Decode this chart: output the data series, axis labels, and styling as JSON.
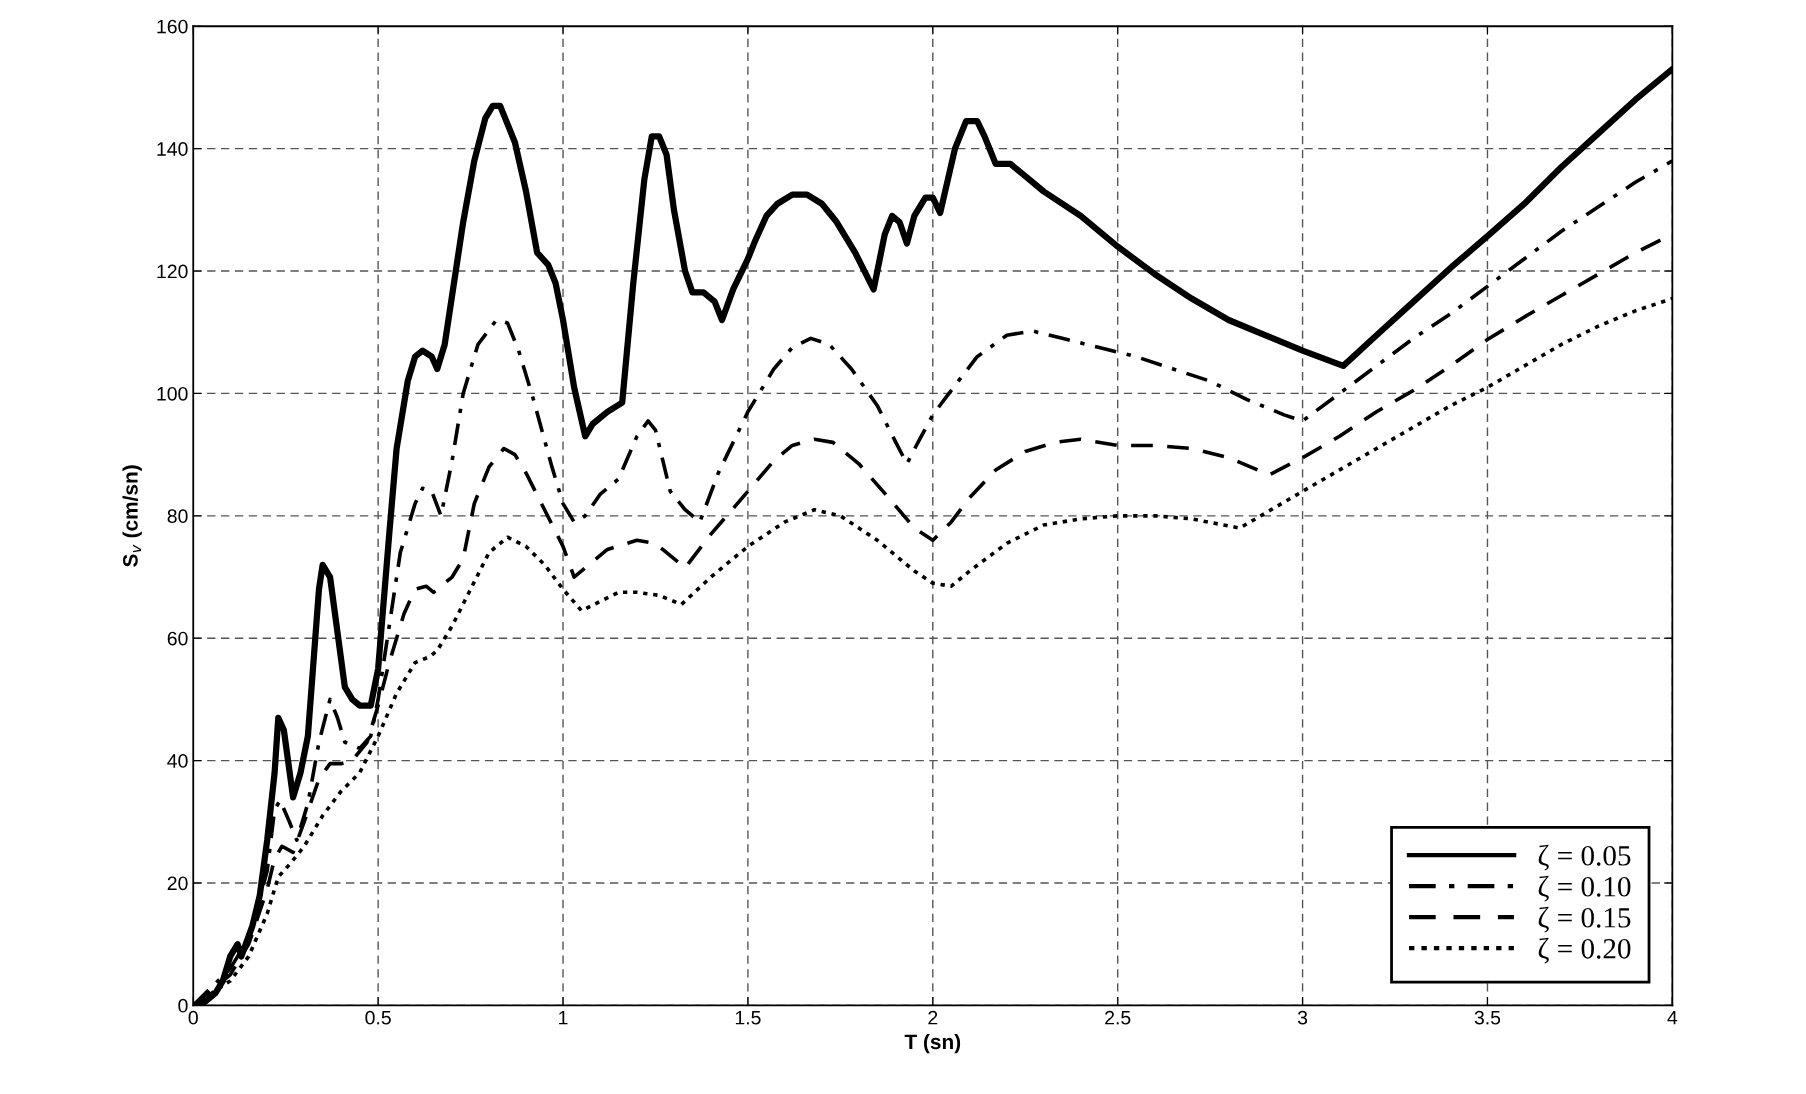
{
  "chart_data": {
    "type": "line",
    "xlabel": "T (sn)",
    "ylabel": "S$_{v}$ (cm/sn)",
    "xlim": [
      0,
      4
    ],
    "ylim": [
      0,
      160
    ],
    "xticks": [
      0,
      0.5,
      1,
      1.5,
      2,
      2.5,
      3,
      3.5,
      4
    ],
    "yticks": [
      0,
      20,
      40,
      60,
      80,
      100,
      120,
      140,
      160
    ],
    "grid": true,
    "legend": "bottom right",
    "marker": "none",
    "series": [
      {
        "name": "ζ = 0.05",
        "color": "#000000",
        "line_style": "solid",
        "x": [
          0,
          0.03,
          0.06,
          0.08,
          0.1,
          0.12,
          0.13,
          0.16,
          0.18,
          0.2,
          0.22,
          0.23,
          0.245,
          0.27,
          0.29,
          0.31,
          0.34,
          0.35,
          0.37,
          0.39,
          0.41,
          0.43,
          0.45,
          0.48,
          0.5,
          0.53,
          0.55,
          0.58,
          0.6,
          0.62,
          0.645,
          0.66,
          0.68,
          0.7,
          0.73,
          0.76,
          0.79,
          0.81,
          0.83,
          0.85,
          0.87,
          0.9,
          0.93,
          0.96,
          0.98,
          1.0,
          1.03,
          1.06,
          1.08,
          1.12,
          1.16,
          1.19,
          1.22,
          1.24,
          1.26,
          1.28,
          1.3,
          1.33,
          1.35,
          1.38,
          1.41,
          1.43,
          1.46,
          1.5,
          1.52,
          1.55,
          1.58,
          1.62,
          1.66,
          1.7,
          1.74,
          1.79,
          1.84,
          1.87,
          1.89,
          1.91,
          1.93,
          1.95,
          1.98,
          2.0,
          2.02,
          2.06,
          2.09,
          2.12,
          2.14,
          2.17,
          2.21,
          2.25,
          2.3,
          2.4,
          2.5,
          2.6,
          2.7,
          2.8,
          2.9,
          3.0,
          3.11,
          3.2,
          3.3,
          3.4,
          3.5,
          3.6,
          3.7,
          3.8,
          3.9,
          4.0
        ],
        "values": [
          0,
          0.5,
          2,
          4,
          8,
          10,
          8,
          13,
          18,
          27,
          38,
          47,
          45,
          34,
          38,
          44,
          68,
          72,
          70,
          61,
          52,
          50,
          49,
          49,
          55,
          77,
          91,
          102,
          106,
          107,
          106,
          104,
          108,
          116,
          128,
          138,
          145,
          147,
          147,
          144,
          141,
          133,
          123,
          121,
          118,
          112,
          101,
          93,
          95,
          97,
          98.5,
          118,
          135,
          142,
          142,
          139,
          130,
          120,
          116.5,
          116.5,
          115,
          112,
          117,
          122,
          125,
          129,
          131,
          132.5,
          132.5,
          131,
          128,
          123,
          117,
          126,
          129,
          128,
          124.5,
          129,
          132,
          132,
          129.5,
          140,
          144.5,
          144.5,
          142,
          137.5,
          137.5,
          135.5,
          133,
          129,
          124,
          119.5,
          115.5,
          112,
          109.5,
          107,
          104.5,
          109.5,
          115,
          120.5,
          125.7,
          131,
          137,
          142.5,
          148,
          153
        ]
      },
      {
        "name": "ζ = 0.10",
        "color": "#000000",
        "line_style": "dashdot",
        "x": [
          0,
          0.1,
          0.15,
          0.2,
          0.22,
          0.235,
          0.26,
          0.28,
          0.31,
          0.34,
          0.37,
          0.39,
          0.41,
          0.45,
          0.48,
          0.5,
          0.53,
          0.56,
          0.6,
          0.62,
          0.645,
          0.67,
          0.7,
          0.73,
          0.77,
          0.82,
          0.85,
          0.88,
          0.92,
          0.97,
          1.0,
          1.03,
          1.06,
          1.1,
          1.15,
          1.2,
          1.23,
          1.25,
          1.29,
          1.33,
          1.37,
          1.42,
          1.5,
          1.57,
          1.62,
          1.67,
          1.72,
          1.78,
          1.85,
          1.9,
          1.93,
          1.96,
          2.0,
          2.05,
          2.12,
          2.2,
          2.27,
          2.35,
          2.45,
          2.55,
          2.65,
          2.75,
          2.85,
          2.95,
          3.0,
          3.1,
          3.2,
          3.3,
          3.4,
          3.5,
          3.6,
          3.7,
          3.8,
          3.9,
          4.0
        ],
        "values": [
          0,
          6,
          11,
          22,
          32,
          33.5,
          30,
          27,
          33,
          43,
          50,
          47,
          43,
          42,
          44,
          50,
          62,
          74,
          82,
          84.5,
          84,
          80,
          89,
          100,
          108,
          112,
          111.5,
          107,
          99,
          88,
          82,
          79,
          80,
          83.5,
          86,
          93,
          95.5,
          94,
          84,
          81,
          79,
          87,
          97,
          104,
          107.5,
          109,
          108,
          104,
          98,
          92,
          88.5,
          92,
          96.5,
          100.5,
          106,
          109.5,
          110.2,
          109,
          107.5,
          106,
          104,
          102,
          99,
          96.5,
          95.5,
          100,
          104.5,
          109,
          113,
          117.5,
          122,
          126.5,
          130.5,
          134.5,
          138
        ]
      },
      {
        "name": "ζ = 0.15",
        "color": "#000000",
        "line_style": "dashed",
        "x": [
          0,
          0.1,
          0.15,
          0.2,
          0.22,
          0.24,
          0.27,
          0.3,
          0.34,
          0.37,
          0.4,
          0.43,
          0.47,
          0.5,
          0.53,
          0.57,
          0.6,
          0.63,
          0.65,
          0.7,
          0.73,
          0.76,
          0.8,
          0.84,
          0.87,
          0.9,
          0.95,
          1.0,
          1.03,
          1.07,
          1.12,
          1.2,
          1.25,
          1.3,
          1.33,
          1.4,
          1.5,
          1.57,
          1.62,
          1.68,
          1.73,
          1.8,
          1.88,
          1.95,
          2.0,
          2.05,
          2.1,
          2.17,
          2.25,
          2.33,
          2.4,
          2.5,
          2.6,
          2.7,
          2.8,
          2.91,
          3.0,
          3.1,
          3.2,
          3.3,
          3.4,
          3.5,
          3.6,
          3.7,
          3.8,
          3.9,
          4.0
        ],
        "values": [
          0,
          5,
          10,
          19,
          24,
          26,
          25,
          30,
          37,
          39.5,
          39.5,
          40,
          43,
          49,
          56,
          64,
          68,
          68.5,
          67.5,
          70,
          73,
          82,
          88,
          91,
          90,
          87,
          81,
          75,
          70,
          72,
          74.5,
          76,
          75.5,
          73,
          71.5,
          77,
          84,
          89,
          91.5,
          92.5,
          92,
          88.5,
          83,
          78,
          76,
          79,
          83,
          87.5,
          90.5,
          92,
          92.5,
          91.5,
          91.5,
          91,
          89.5,
          86.7,
          89.5,
          93,
          97,
          100.5,
          104.5,
          108.8,
          112.5,
          116,
          119.5,
          123,
          126
        ]
      },
      {
        "name": "ζ = 0.20",
        "color": "#000000",
        "line_style": "dotted",
        "x": [
          0,
          0.1,
          0.15,
          0.2,
          0.23,
          0.26,
          0.3,
          0.35,
          0.4,
          0.45,
          0.5,
          0.55,
          0.6,
          0.64,
          0.66,
          0.7,
          0.75,
          0.8,
          0.85,
          0.9,
          0.95,
          1.0,
          1.05,
          1.1,
          1.15,
          1.2,
          1.26,
          1.32,
          1.4,
          1.5,
          1.6,
          1.68,
          1.75,
          1.85,
          1.95,
          2.0,
          2.05,
          2.1,
          2.2,
          2.3,
          2.4,
          2.5,
          2.6,
          2.7,
          2.83,
          3.0,
          3.1,
          3.2,
          3.3,
          3.4,
          3.5,
          3.6,
          3.7,
          3.8,
          3.9,
          4.0
        ],
        "values": [
          0,
          4,
          8,
          15,
          21,
          23,
          26,
          31,
          35,
          38,
          44,
          51,
          56,
          57,
          58,
          62,
          68,
          74,
          76.5,
          75,
          72,
          68,
          64.5,
          66,
          67.5,
          67.5,
          67,
          65.5,
          70,
          75,
          79,
          81,
          80,
          76,
          71,
          69,
          68.5,
          71,
          75.5,
          78.5,
          79.5,
          80,
          80,
          79.5,
          78,
          84,
          87.5,
          91,
          94.5,
          98,
          101,
          104.5,
          108,
          111,
          113.5,
          115.5
        ]
      }
    ]
  }
}
